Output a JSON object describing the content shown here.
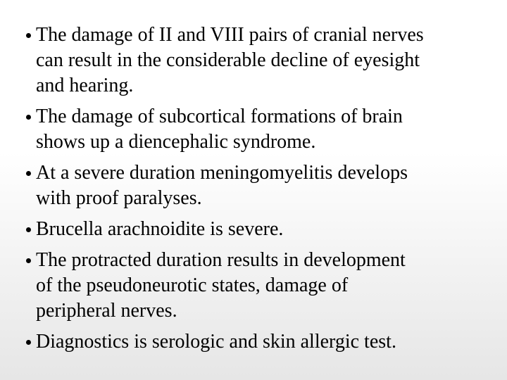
{
  "bullets": [
    {
      "lines": [
        "The damage of II and VIII pairs of cranial nerves",
        "can result in the considerable decline of eyesight",
        "and hearing."
      ]
    },
    {
      "lines": [
        "The damage of subcortical formations of brain",
        "shows up a diencephalic syndrome."
      ]
    },
    {
      "lines": [
        "At a severe duration meningomyelitis develops",
        "with proof paralyses."
      ]
    },
    {
      "lines": [
        "Brucella arachnoidite is severe."
      ]
    },
    {
      "lines": [
        "The protracted duration results in development",
        "of the pseudoneurotic states, damage of",
        "peripheral nerves."
      ]
    },
    {
      "lines": [
        "Diagnostics is serologic and skin allergic test."
      ]
    }
  ]
}
